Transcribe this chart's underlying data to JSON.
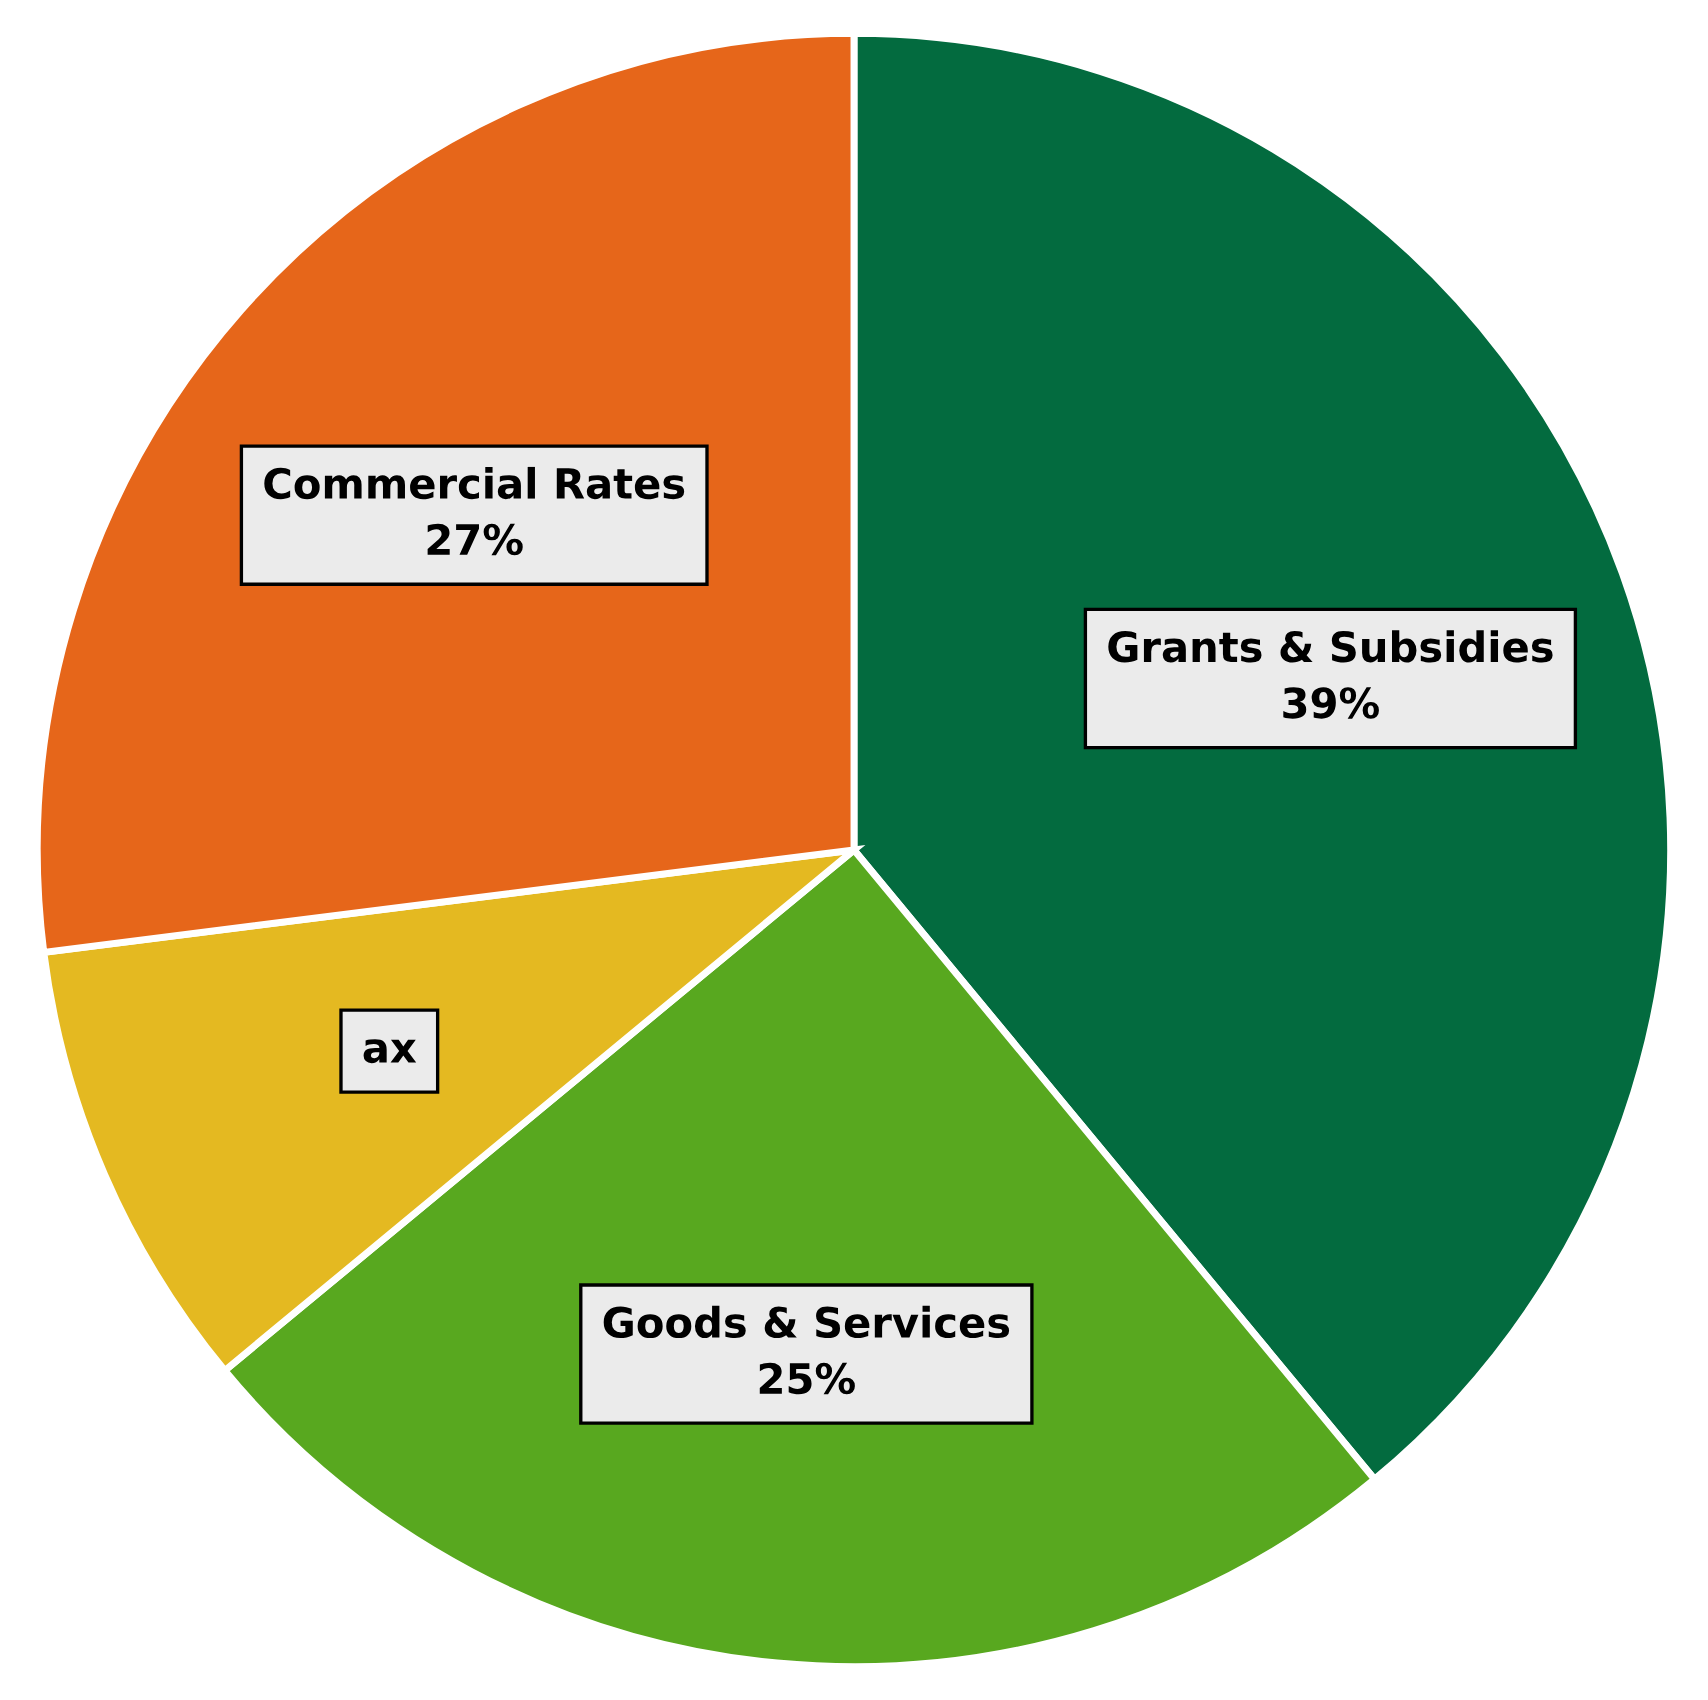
{
  "chart_data": {
    "type": "pie",
    "categories": [
      "Grants & Subsidies",
      "Goods & Services",
      "ax",
      "Commercial Rates"
    ],
    "values": [
      39,
      25,
      9,
      27
    ],
    "colors": [
      "#036b3f",
      "#58a81f",
      "#e4b921",
      "#e6661a"
    ],
    "value_labels": [
      "39%",
      "25%",
      null,
      "27%"
    ]
  }
}
